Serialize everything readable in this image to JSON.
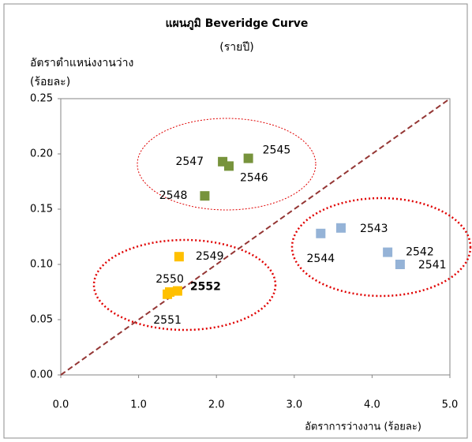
{
  "chart_data": {
    "type": "scatter",
    "title": "แผนภูมิ  Beveridge Curve",
    "subtitle": "(รายปี)",
    "y_label": [
      "อัตราตำแหน่งงานว่าง",
      "(ร้อยละ)"
    ],
    "x_label": "อัตราการว่างงาน (ร้อยละ)",
    "xlim": [
      0,
      5
    ],
    "ylim": [
      0,
      0.25
    ],
    "xticks": [
      {
        "value": 0,
        "label": "0.0"
      },
      {
        "value": 1,
        "label": "1.0"
      },
      {
        "value": 2,
        "label": "2.0"
      },
      {
        "value": 3,
        "label": "3.0"
      },
      {
        "value": 4,
        "label": "4.0"
      },
      {
        "value": 5,
        "label": "5.0"
      }
    ],
    "yticks": [
      {
        "value": 0,
        "label": "0.00"
      },
      {
        "value": 0.05,
        "label": "0.05"
      },
      {
        "value": 0.1,
        "label": "0.10"
      },
      {
        "value": 0.15,
        "label": "0.15"
      },
      {
        "value": 0.2,
        "label": "0.20"
      },
      {
        "value": 0.25,
        "label": "0.25"
      }
    ],
    "series": [
      {
        "color": "#77933c",
        "labels": [
          "2547",
          "2546",
          "2545",
          "2548"
        ],
        "x": [
          2.08,
          2.16,
          2.41,
          1.85
        ],
        "values": [
          0.193,
          0.189,
          0.196,
          0.162
        ]
      },
      {
        "color": "#95b3d7",
        "labels": [
          "2544",
          "2543",
          "2542",
          "2541"
        ],
        "x": [
          3.34,
          3.6,
          4.2,
          4.36
        ],
        "values": [
          0.128,
          0.133,
          0.111,
          0.1
        ]
      },
      {
        "color": "#ffc000",
        "labels": [
          "2549",
          "2550",
          "2551",
          "2552"
        ],
        "x": [
          1.52,
          1.4,
          1.37,
          1.5
        ],
        "values": [
          0.107,
          0.075,
          0.073,
          0.076
        ],
        "highlight": 3,
        "highlight_color": "#ff0000"
      }
    ],
    "reference_line": {
      "color": "#943634",
      "x": [
        0,
        5
      ],
      "values": [
        0,
        0.25
      ]
    }
  }
}
